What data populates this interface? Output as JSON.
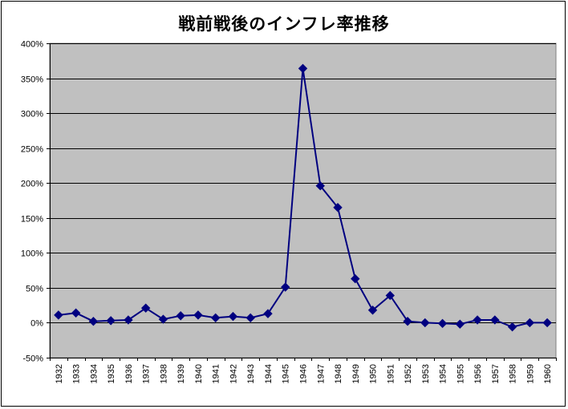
{
  "chart_data": {
    "type": "line",
    "title": "戦前戦後のインフレ率推移",
    "xlabel": "",
    "ylabel": "",
    "x": [
      "1932",
      "1933",
      "1934",
      "1935",
      "1936",
      "1937",
      "1938",
      "1939",
      "1940",
      "1941",
      "1942",
      "1943",
      "1944",
      "1945",
      "1946",
      "1947",
      "1948",
      "1949",
      "1950",
      "1951",
      "1952",
      "1953",
      "1954",
      "1955",
      "1956",
      "1957",
      "1958",
      "1959",
      "1960"
    ],
    "series": [
      {
        "name": "",
        "values": [
          11,
          14,
          2,
          3,
          4,
          21,
          5,
          10,
          11,
          7,
          9,
          7,
          13,
          51,
          364,
          196,
          165,
          63,
          18,
          39,
          2,
          0,
          -1,
          -2,
          4,
          4,
          -6,
          0,
          0
        ]
      }
    ],
    "ylim": [
      -50,
      400
    ],
    "yticks": [
      -50,
      0,
      50,
      100,
      150,
      200,
      250,
      300,
      350,
      400
    ],
    "ytick_labels": [
      "-50%",
      "0%",
      "50%",
      "100%",
      "150%",
      "200%",
      "250%",
      "300%",
      "350%",
      "400%"
    ],
    "grid": true,
    "legend": "none",
    "colors": {
      "plot_background": "#c0c0c0",
      "series_line": "#000080",
      "marker": "#000080",
      "gridline": "#000000"
    }
  }
}
